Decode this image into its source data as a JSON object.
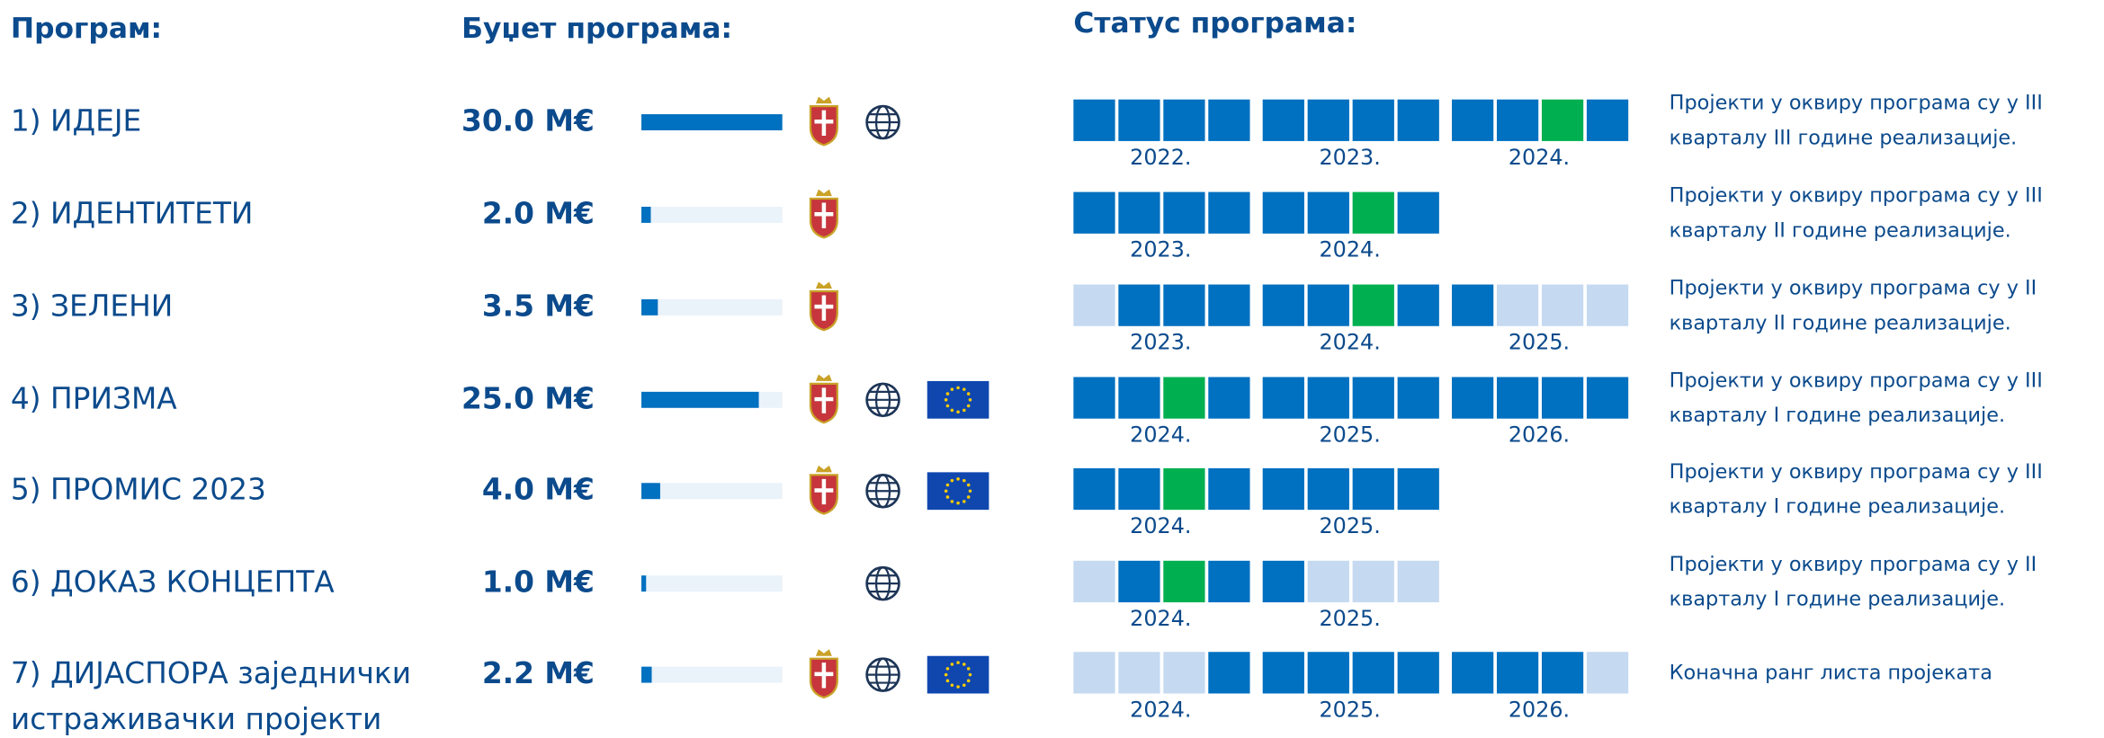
{
  "header": {
    "program": "Програм:",
    "budget": "Буџет програма:",
    "status": "Статус програма:"
  },
  "rows": [
    {
      "name": [
        "1) ИДЕЈЕ"
      ],
      "budget": 30,
      "budget_label": "30.0 M€",
      "years": [
        {
          "label": "2022.",
          "quarters": [
            "#0070c0",
            "#0070c0",
            "#0070c0",
            "#0070c0"
          ]
        },
        {
          "label": "2023.",
          "quarters": [
            "#0070c0",
            "#0070c0",
            "#0070c0",
            "#0070c0"
          ]
        },
        {
          "label": "2024.",
          "quarters": [
            "#0070c0",
            "#0070c0",
            "#00b050",
            "#0070c0"
          ]
        }
      ],
      "status": [
        "Пројекти у оквиру програма су у III",
        "кварталу III године реализације."
      ]
    },
    {
      "name": [
        "2) ИДЕНТИТЕТИ"
      ],
      "budget": 2,
      "budget_label": "2.0 M€",
      "years": [
        {
          "label": "2023.",
          "quarters": [
            "#0070c0",
            "#0070c0",
            "#0070c0",
            "#0070c0"
          ]
        },
        {
          "label": "2024.",
          "quarters": [
            "#0070c0",
            "#0070c0",
            "#00b050",
            "#0070c0"
          ]
        }
      ],
      "status": [
        "Пројекти у оквиру програма су у III",
        "кварталу II године реализације."
      ]
    },
    {
      "name": [
        "3) ЗЕЛЕНИ"
      ],
      "budget": 3.5,
      "budget_label": "3.5 M€",
      "years": [
        {
          "label": "2023.",
          "quarters": [
            "#c5d9f1",
            "#0070c0",
            "#0070c0",
            "#0070c0"
          ]
        },
        {
          "label": "2024.",
          "quarters": [
            "#0070c0",
            "#0070c0",
            "#00b050",
            "#0070c0"
          ]
        },
        {
          "label": "2025.",
          "quarters": [
            "#0070c0",
            "#c5d9f1",
            "#c5d9f1",
            "#c5d9f1"
          ]
        }
      ],
      "status": [
        "Пројекти у оквиру програма су у II",
        "кварталу II године реализације."
      ]
    },
    {
      "name": [
        "4) ПРИЗМА"
      ],
      "budget": 25,
      "budget_label": "25.0 M€",
      "years": [
        {
          "label": "2024.",
          "quarters": [
            "#0070c0",
            "#0070c0",
            "#00b050",
            "#0070c0"
          ]
        },
        {
          "label": "2025.",
          "quarters": [
            "#0070c0",
            "#0070c0",
            "#0070c0",
            "#0070c0"
          ]
        },
        {
          "label": "2026.",
          "quarters": [
            "#0070c0",
            "#0070c0",
            "#0070c0",
            "#0070c0"
          ]
        }
      ],
      "status": [
        "Пројекти у оквиру програма су у III",
        "кварталу I године реализације."
      ]
    },
    {
      "name": [
        "5) ПРОМИС 2023"
      ],
      "budget": 4,
      "budget_label": "4.0 M€",
      "years": [
        {
          "label": "2024.",
          "quarters": [
            "#0070c0",
            "#0070c0",
            "#00b050",
            "#0070c0"
          ]
        },
        {
          "label": "2025.",
          "quarters": [
            "#0070c0",
            "#0070c0",
            "#0070c0",
            "#0070c0"
          ]
        }
      ],
      "status": [
        "Пројекти у оквиру програма су у III",
        "кварталу I године реализације."
      ]
    },
    {
      "name": [
        "6) ДОКАЗ КОНЦЕПТА"
      ],
      "budget": 1,
      "budget_label": "1.0 M€",
      "years": [
        {
          "label": "2024.",
          "quarters": [
            "#c5d9f1",
            "#0070c0",
            "#00b050",
            "#0070c0"
          ]
        },
        {
          "label": "2025.",
          "quarters": [
            "#0070c0",
            "#c5d9f1",
            "#c5d9f1",
            "#c5d9f1"
          ]
        }
      ],
      "status": [
        "Пројекти у оквиру програма су у II",
        "кварталу I године реализације."
      ]
    },
    {
      "name": [
        "7) ДИЈАСПОРА заједнички",
        "истраживачки пројекти"
      ],
      "budget": 2.2,
      "budget_label": "2.2 M€",
      "years": [
        {
          "label": "2024.",
          "quarters": [
            "#c5d9f1",
            "#c5d9f1",
            "#c5d9f1",
            "#0070c0"
          ]
        },
        {
          "label": "2025.",
          "quarters": [
            "#0070c0",
            "#0070c0",
            "#0070c0",
            "#0070c0"
          ]
        },
        {
          "label": "2026.",
          "quarters": [
            "#0070c0",
            "#0070c0",
            "#0070c0",
            "#c5d9f1"
          ]
        }
      ],
      "status": [
        "Коначна ранг листа пројеката"
      ]
    }
  ]
}
